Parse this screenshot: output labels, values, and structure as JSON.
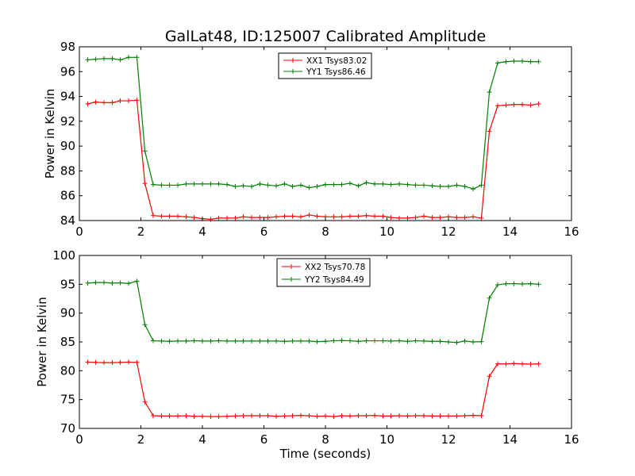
{
  "chart_data": [
    {
      "type": "line",
      "title": "GalLat48, ID:125007 Calibrated Amplitude",
      "xlabel": "",
      "ylabel": "Power in Kelvin",
      "xlim": [
        0,
        16
      ],
      "ylim": [
        84,
        98
      ],
      "xticks": [
        0,
        2,
        4,
        6,
        8,
        10,
        12,
        14,
        16
      ],
      "yticks": [
        84,
        86,
        88,
        90,
        92,
        94,
        96,
        98
      ],
      "grid": false,
      "legend_position": "top-center",
      "x": [
        0.27,
        0.53,
        0.8,
        1.07,
        1.33,
        1.6,
        1.87,
        2.13,
        2.4,
        2.67,
        2.93,
        3.2,
        3.47,
        3.73,
        4.0,
        4.27,
        4.53,
        4.8,
        5.07,
        5.33,
        5.6,
        5.87,
        6.13,
        6.4,
        6.67,
        6.93,
        7.2,
        7.47,
        7.73,
        8.0,
        8.27,
        8.53,
        8.8,
        9.07,
        9.33,
        9.6,
        9.87,
        10.13,
        10.4,
        10.67,
        10.93,
        11.2,
        11.47,
        11.73,
        12.0,
        12.27,
        12.53,
        12.8,
        13.07,
        13.33,
        13.6,
        13.87,
        14.13,
        14.4,
        14.67,
        14.93
      ],
      "series": [
        {
          "name": "XX1 Tsys83.02",
          "color": "#ff0000",
          "values": [
            93.4,
            93.55,
            93.5,
            93.5,
            93.65,
            93.65,
            93.7,
            87.0,
            84.4,
            84.35,
            84.35,
            84.35,
            84.3,
            84.25,
            84.15,
            84.1,
            84.2,
            84.2,
            84.2,
            84.3,
            84.25,
            84.25,
            84.25,
            84.3,
            84.35,
            84.35,
            84.3,
            84.45,
            84.35,
            84.3,
            84.3,
            84.3,
            84.35,
            84.35,
            84.4,
            84.35,
            84.35,
            84.25,
            84.2,
            84.2,
            84.25,
            84.35,
            84.25,
            84.25,
            84.3,
            84.25,
            84.25,
            84.3,
            84.2,
            91.2,
            93.25,
            93.3,
            93.35,
            93.35,
            93.3,
            93.4
          ]
        },
        {
          "name": "YY1 Tsys86.46",
          "color": "#008000",
          "values": [
            96.95,
            97.0,
            97.05,
            97.05,
            96.95,
            97.15,
            97.15,
            89.6,
            86.9,
            86.85,
            86.85,
            86.85,
            86.95,
            86.95,
            86.95,
            86.95,
            86.95,
            86.9,
            86.75,
            86.8,
            86.75,
            86.95,
            86.85,
            86.8,
            86.95,
            86.75,
            86.85,
            86.65,
            86.75,
            86.9,
            86.9,
            86.9,
            87.0,
            86.8,
            87.05,
            86.95,
            86.95,
            86.9,
            86.95,
            86.9,
            86.85,
            86.85,
            86.8,
            86.75,
            86.75,
            86.85,
            86.75,
            86.55,
            86.85,
            94.35,
            96.7,
            96.8,
            96.85,
            96.85,
            96.8,
            96.8
          ]
        }
      ]
    },
    {
      "type": "line",
      "title": "",
      "xlabel": "Time (seconds)",
      "ylabel": "Power in Kelvin",
      "xlim": [
        0,
        16
      ],
      "ylim": [
        70,
        100
      ],
      "xticks": [
        0,
        2,
        4,
        6,
        8,
        10,
        12,
        14,
        16
      ],
      "yticks": [
        70,
        75,
        80,
        85,
        90,
        95,
        100
      ],
      "grid": false,
      "legend_position": "top-center",
      "x": [
        0.27,
        0.53,
        0.8,
        1.07,
        1.33,
        1.6,
        1.87,
        2.13,
        2.4,
        2.67,
        2.93,
        3.2,
        3.47,
        3.73,
        4.0,
        4.27,
        4.53,
        4.8,
        5.07,
        5.33,
        5.6,
        5.87,
        6.13,
        6.4,
        6.67,
        6.93,
        7.2,
        7.47,
        7.73,
        8.0,
        8.27,
        8.53,
        8.8,
        9.07,
        9.33,
        9.6,
        9.87,
        10.13,
        10.4,
        10.67,
        10.93,
        11.2,
        11.47,
        11.73,
        12.0,
        12.27,
        12.53,
        12.8,
        13.07,
        13.33,
        13.6,
        13.87,
        14.13,
        14.4,
        14.67,
        14.93
      ],
      "series": [
        {
          "name": "XX2 Tsys70.78",
          "color": "#ff0000",
          "values": [
            81.5,
            81.45,
            81.4,
            81.4,
            81.45,
            81.5,
            81.45,
            74.6,
            72.2,
            72.15,
            72.15,
            72.15,
            72.2,
            72.1,
            72.1,
            72.05,
            72.05,
            72.1,
            72.15,
            72.2,
            72.2,
            72.2,
            72.2,
            72.1,
            72.15,
            72.2,
            72.25,
            72.2,
            72.1,
            72.15,
            72.05,
            72.2,
            72.15,
            72.2,
            72.2,
            72.25,
            72.15,
            72.15,
            72.2,
            72.15,
            72.2,
            72.2,
            72.15,
            72.15,
            72.15,
            72.15,
            72.2,
            72.25,
            72.2,
            79.05,
            81.2,
            81.2,
            81.25,
            81.2,
            81.15,
            81.2
          ]
        },
        {
          "name": "YY2 Tsys84.49",
          "color": "#008000",
          "values": [
            95.2,
            95.3,
            95.3,
            95.2,
            95.25,
            95.15,
            95.55,
            88.0,
            85.2,
            85.15,
            85.1,
            85.15,
            85.15,
            85.2,
            85.15,
            85.15,
            85.2,
            85.15,
            85.15,
            85.15,
            85.15,
            85.15,
            85.15,
            85.15,
            85.1,
            85.15,
            85.15,
            85.15,
            85.05,
            85.1,
            85.2,
            85.25,
            85.2,
            85.1,
            85.2,
            85.2,
            85.2,
            85.15,
            85.2,
            85.1,
            85.2,
            85.15,
            85.1,
            85.1,
            85.0,
            84.9,
            85.15,
            85.0,
            85.05,
            92.6,
            94.9,
            95.1,
            95.1,
            95.05,
            95.1,
            95.0
          ]
        }
      ]
    }
  ]
}
